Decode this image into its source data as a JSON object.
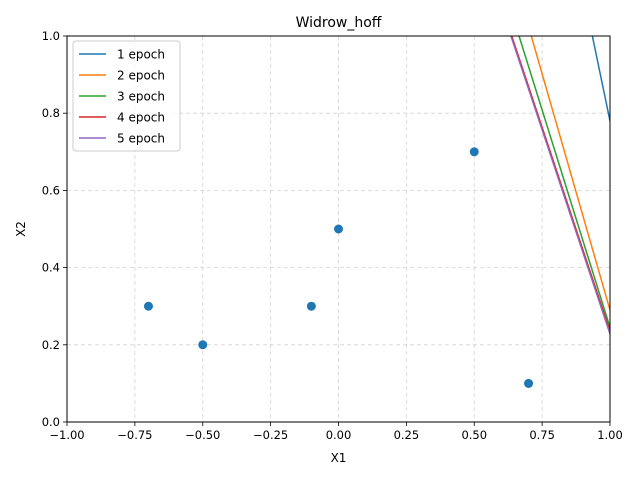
{
  "chart_data": {
    "type": "scatter",
    "title": "Widrow_hoff",
    "xlabel": "X1",
    "ylabel": "X2",
    "xlim": [
      -1.0,
      1.0
    ],
    "ylim": [
      0.0,
      1.0
    ],
    "xticks": [
      -1.0,
      -0.75,
      -0.5,
      -0.25,
      0.0,
      0.25,
      0.5,
      0.75,
      1.0
    ],
    "xtick_labels": [
      "−1.00",
      "−0.75",
      "−0.50",
      "−0.25",
      "0.00",
      "0.25",
      "0.50",
      "0.75",
      "1.00"
    ],
    "yticks": [
      0.0,
      0.2,
      0.4,
      0.6,
      0.8,
      1.0
    ],
    "ytick_labels": [
      "0.0",
      "0.2",
      "0.4",
      "0.6",
      "0.8",
      "1.0"
    ],
    "grid": true,
    "legend_position": "top-left",
    "points": {
      "color": "#1f77b4",
      "x": [
        -0.7,
        -0.5,
        -0.1,
        0.0,
        0.5,
        0.7
      ],
      "y": [
        0.3,
        0.2,
        0.3,
        0.5,
        0.7,
        0.1
      ]
    },
    "series": [
      {
        "name": "1 epoch",
        "color": "#1f77b4",
        "x": [
          0.935,
          1.0
        ],
        "y": [
          1.0,
          0.78
        ]
      },
      {
        "name": "2 epoch",
        "color": "#ff7f0e",
        "x": [
          0.71,
          1.0
        ],
        "y": [
          1.0,
          0.29
        ]
      },
      {
        "name": "3 epoch",
        "color": "#2ca02c",
        "x": [
          0.665,
          1.0
        ],
        "y": [
          1.0,
          0.245
        ]
      },
      {
        "name": "4 epoch",
        "color": "#d62728",
        "x": [
          0.638,
          1.0
        ],
        "y": [
          1.0,
          0.235
        ]
      },
      {
        "name": "5 epoch",
        "color": "#9467bd",
        "x": [
          0.635,
          1.0
        ],
        "y": [
          1.0,
          0.228
        ]
      }
    ]
  }
}
